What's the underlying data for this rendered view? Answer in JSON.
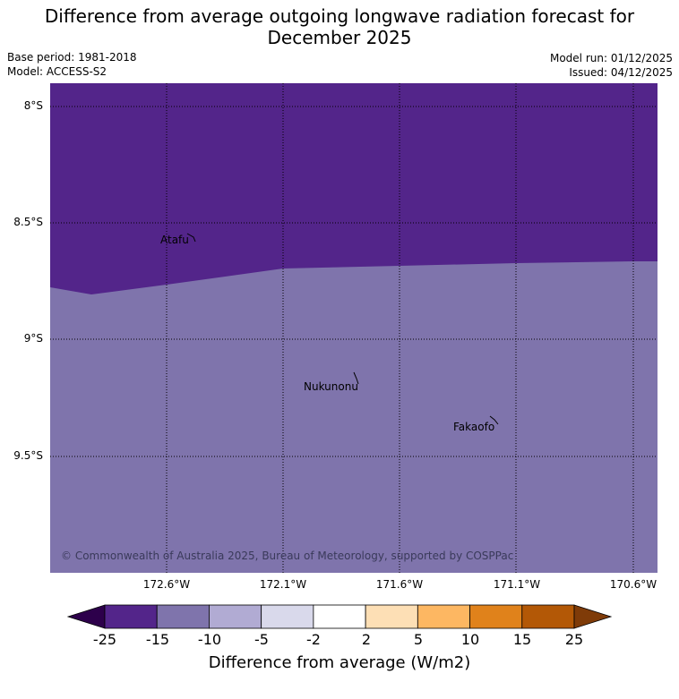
{
  "header": {
    "title_line1": "Difference from average outgoing longwave radiation forecast for",
    "title_line2": "December 2025",
    "base_period": "Base period: 1981-2018",
    "model": "Model: ACCESS-S2",
    "model_run": "Model run: 01/12/2025",
    "issued": "Issued: 04/12/2025"
  },
  "map": {
    "lat_labels": [
      "8°S",
      "8.5°S",
      "9°S",
      "9.5°S"
    ],
    "lon_labels": [
      "172.6°W",
      "172.1°W",
      "171.6°W",
      "171.1°W",
      "170.6°W"
    ],
    "places": [
      "Atafu",
      "Nukunonu",
      "Fakaofo"
    ],
    "copyright": "© Commonwealth of Australia 2025, Bureau of Meteorology, supported by COSPPac",
    "colors": {
      "region_upper": "#53258a",
      "region_lower": "#7f74ac"
    }
  },
  "colorbar": {
    "title": "Difference from average (W/m2)",
    "ticks": [
      "-25",
      "-15",
      "-10",
      "-5",
      "-2",
      "2",
      "5",
      "10",
      "15",
      "25"
    ],
    "colors": {
      "under": "#2d004b",
      "bins": [
        "#53258a",
        "#7f74ac",
        "#b1abd3",
        "#d9d9eb",
        "#ffffff",
        "#fddfb5",
        "#fdb762",
        "#e0821b",
        "#b35806"
      ],
      "over": "#7f3b08"
    }
  }
}
